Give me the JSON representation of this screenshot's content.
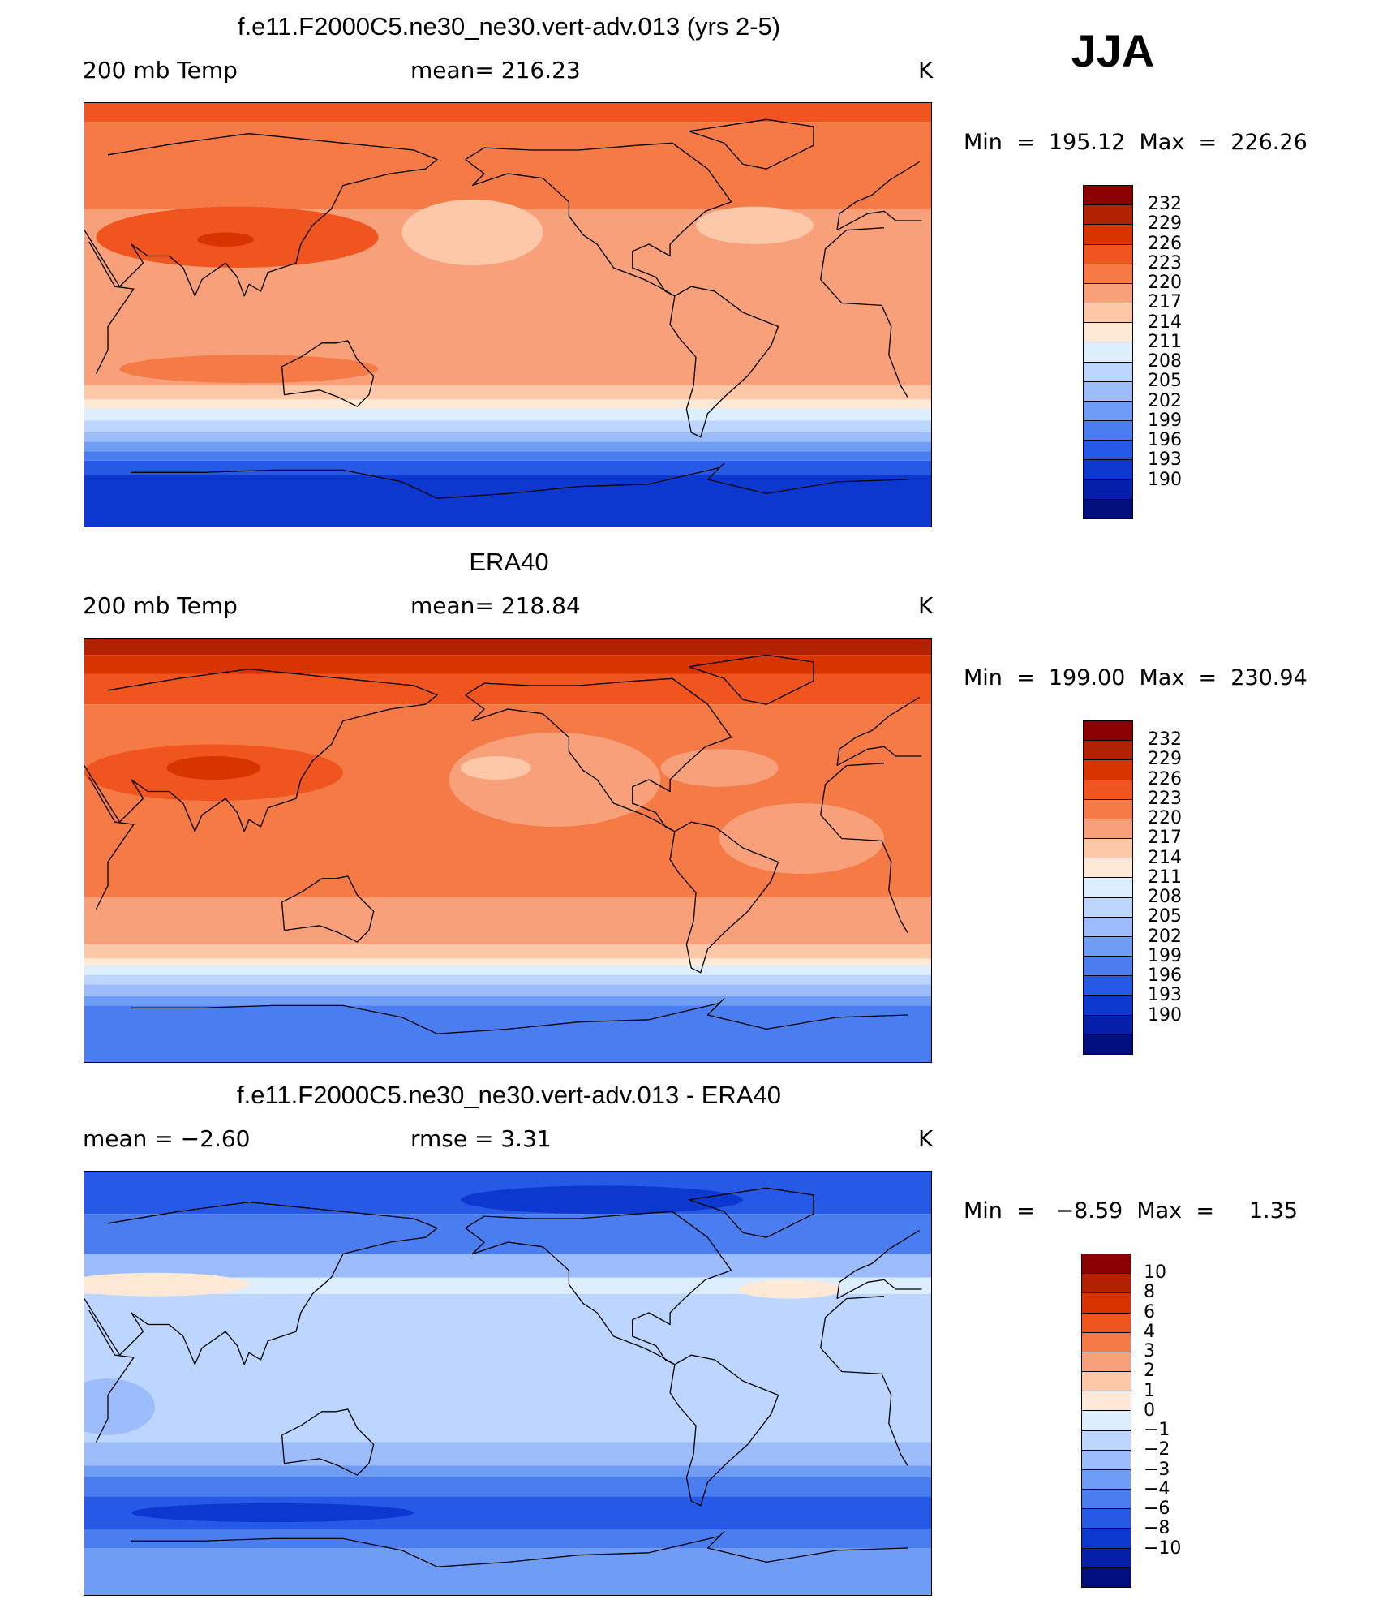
{
  "season": "JJA",
  "colormap_temp": [
    "#8b0000",
    "#b22200",
    "#d83400",
    "#f05520",
    "#f57a45",
    "#f8a07a",
    "#fcc8a8",
    "#fde9d6",
    "#dceeff",
    "#bcd6ff",
    "#9dbcfb",
    "#6f9cf5",
    "#4a7ef0",
    "#2659e6",
    "#0c38d0",
    "#061fa8",
    "#000f7d"
  ],
  "colormap_diff": [
    "#8b0000",
    "#b22200",
    "#d83400",
    "#f05520",
    "#f57a45",
    "#f8a07a",
    "#fcc8a8",
    "#fde9d6",
    "#dceeff",
    "#bcd6ff",
    "#9dbcfb",
    "#6f9cf5",
    "#4a7ef0",
    "#2659e6",
    "#0c38d0",
    "#061fa8",
    "#000f7d"
  ],
  "panels": [
    {
      "title": "f.e11.F2000C5.ne30_ne30.vert-adv.013 (yrs 2-5)",
      "left_text": "200 mb Temp",
      "center_text": "mean= 216.23",
      "right_text": "K",
      "minmax": "Min  =  195.12  Max  =  226.26",
      "colorbar_labels": [
        "232",
        "229",
        "226",
        "223",
        "220",
        "217",
        "214",
        "211",
        "208",
        "205",
        "202",
        "199",
        "196",
        "193",
        "190"
      ],
      "bands": [
        {
          "lat_from": 90,
          "lat_to": 82,
          "color": "#f05520"
        },
        {
          "lat_from": 82,
          "lat_to": 45,
          "color": "#f57a45"
        },
        {
          "lat_from": 45,
          "lat_to": -30,
          "color": "#f8a07a"
        },
        {
          "lat_from": -30,
          "lat_to": -36,
          "color": "#fcc8a8"
        },
        {
          "lat_from": -36,
          "lat_to": -40,
          "color": "#fde9d6"
        },
        {
          "lat_from": -40,
          "lat_to": -45,
          "color": "#dceeff"
        },
        {
          "lat_from": -45,
          "lat_to": -50,
          "color": "#bcd6ff"
        },
        {
          "lat_from": -50,
          "lat_to": -54,
          "color": "#9dbcfb"
        },
        {
          "lat_from": -54,
          "lat_to": -58,
          "color": "#6f9cf5"
        },
        {
          "lat_from": -58,
          "lat_to": -62,
          "color": "#4a7ef0"
        },
        {
          "lat_from": -62,
          "lat_to": -68,
          "color": "#2659e6"
        },
        {
          "lat_from": -68,
          "lat_to": -90,
          "color": "#0c38d0"
        }
      ],
      "blobs": [
        {
          "lon": 95,
          "lat": 33,
          "rlon": 60,
          "rlat": 13,
          "color": "#f05520"
        },
        {
          "lon": 90,
          "lat": 32,
          "rlon": 12,
          "rlat": 3,
          "color": "#d83400"
        },
        {
          "lon": 195,
          "lat": 35,
          "rlon": 30,
          "rlat": 14,
          "color": "#fcc8a8"
        },
        {
          "lon": 100,
          "lat": -23,
          "rlon": 55,
          "rlat": 6,
          "color": "#f57a45"
        },
        {
          "lon": 315,
          "lat": 38,
          "rlon": 25,
          "rlat": 8,
          "color": "#fcc8a8"
        }
      ]
    },
    {
      "title": "ERA40",
      "left_text": "200 mb Temp",
      "center_text": "mean= 218.84",
      "right_text": "K",
      "minmax": "Min  =  199.00  Max  =  230.94",
      "colorbar_labels": [
        "232",
        "229",
        "226",
        "223",
        "220",
        "217",
        "214",
        "211",
        "208",
        "205",
        "202",
        "199",
        "196",
        "193",
        "190"
      ],
      "bands": [
        {
          "lat_from": 90,
          "lat_to": 83,
          "color": "#b22200"
        },
        {
          "lat_from": 83,
          "lat_to": 75,
          "color": "#d83400"
        },
        {
          "lat_from": 75,
          "lat_to": 62,
          "color": "#f05520"
        },
        {
          "lat_from": 62,
          "lat_to": -20,
          "color": "#f57a45"
        },
        {
          "lat_from": -20,
          "lat_to": -40,
          "color": "#f8a07a"
        },
        {
          "lat_from": -40,
          "lat_to": -46,
          "color": "#fcc8a8"
        },
        {
          "lat_from": -46,
          "lat_to": -49,
          "color": "#fde9d6"
        },
        {
          "lat_from": -49,
          "lat_to": -53,
          "color": "#dceeff"
        },
        {
          "lat_from": -53,
          "lat_to": -57,
          "color": "#bcd6ff"
        },
        {
          "lat_from": -57,
          "lat_to": -62,
          "color": "#9dbcfb"
        },
        {
          "lat_from": -62,
          "lat_to": -66,
          "color": "#6f9cf5"
        },
        {
          "lat_from": -66,
          "lat_to": -90,
          "color": "#4a7ef0"
        }
      ],
      "blobs": [
        {
          "lon": 85,
          "lat": 33,
          "rlon": 55,
          "rlat": 12,
          "color": "#f05520"
        },
        {
          "lon": 85,
          "lat": 35,
          "rlon": 20,
          "rlat": 5,
          "color": "#d83400"
        },
        {
          "lon": 230,
          "lat": 30,
          "rlon": 45,
          "rlat": 20,
          "color": "#f8a07a"
        },
        {
          "lon": 205,
          "lat": 35,
          "rlon": 15,
          "rlat": 5,
          "color": "#fcc8a8"
        },
        {
          "lon": 300,
          "lat": 35,
          "rlon": 25,
          "rlat": 8,
          "color": "#f8a07a"
        },
        {
          "lon": 335,
          "lat": 5,
          "rlon": 35,
          "rlat": 15,
          "color": "#f8a07a"
        }
      ]
    },
    {
      "title": "f.e11.F2000C5.ne30_ne30.vert-adv.013 - ERA40",
      "left_text": "mean =    −2.60",
      "center_text": "rmse =     3.31",
      "right_text": "K",
      "minmax": "Min  =   −8.59  Max  =     1.35",
      "colorbar_labels": [
        "10",
        "8",
        "6",
        "4",
        "3",
        "2",
        "1",
        "0",
        "−1",
        "−2",
        "−3",
        "−4",
        "−6",
        "−8",
        "−10"
      ],
      "bands": [
        {
          "lat_from": 90,
          "lat_to": 72,
          "color": "#2659e6"
        },
        {
          "lat_from": 72,
          "lat_to": 55,
          "color": "#4a7ef0"
        },
        {
          "lat_from": 55,
          "lat_to": 45,
          "color": "#9dbcfb"
        },
        {
          "lat_from": 45,
          "lat_to": 38,
          "color": "#dceeff"
        },
        {
          "lat_from": 38,
          "lat_to": -25,
          "color": "#bcd6ff"
        },
        {
          "lat_from": -25,
          "lat_to": -35,
          "color": "#9dbcfb"
        },
        {
          "lat_from": -35,
          "lat_to": -40,
          "color": "#6f9cf5"
        },
        {
          "lat_from": -40,
          "lat_to": -48,
          "color": "#4a7ef0"
        },
        {
          "lat_from": -48,
          "lat_to": -62,
          "color": "#2659e6"
        },
        {
          "lat_from": -62,
          "lat_to": -70,
          "color": "#4a7ef0"
        },
        {
          "lat_from": -70,
          "lat_to": -90,
          "color": "#6f9cf5"
        }
      ],
      "blobs": [
        {
          "lon": 60,
          "lat": 42,
          "rlon": 40,
          "rlat": 5,
          "color": "#fde9d6"
        },
        {
          "lon": 330,
          "lat": 40,
          "rlon": 22,
          "rlat": 4,
          "color": "#fde9d6"
        },
        {
          "lon": 40,
          "lat": -10,
          "rlon": 20,
          "rlat": 12,
          "color": "#9dbcfb"
        },
        {
          "lon": 110,
          "lat": -55,
          "rlon": 60,
          "rlat": 4,
          "color": "#0c38d0"
        },
        {
          "lon": 250,
          "lat": 78,
          "rlon": 60,
          "rlat": 6,
          "color": "#0c38d0"
        }
      ]
    }
  ]
}
